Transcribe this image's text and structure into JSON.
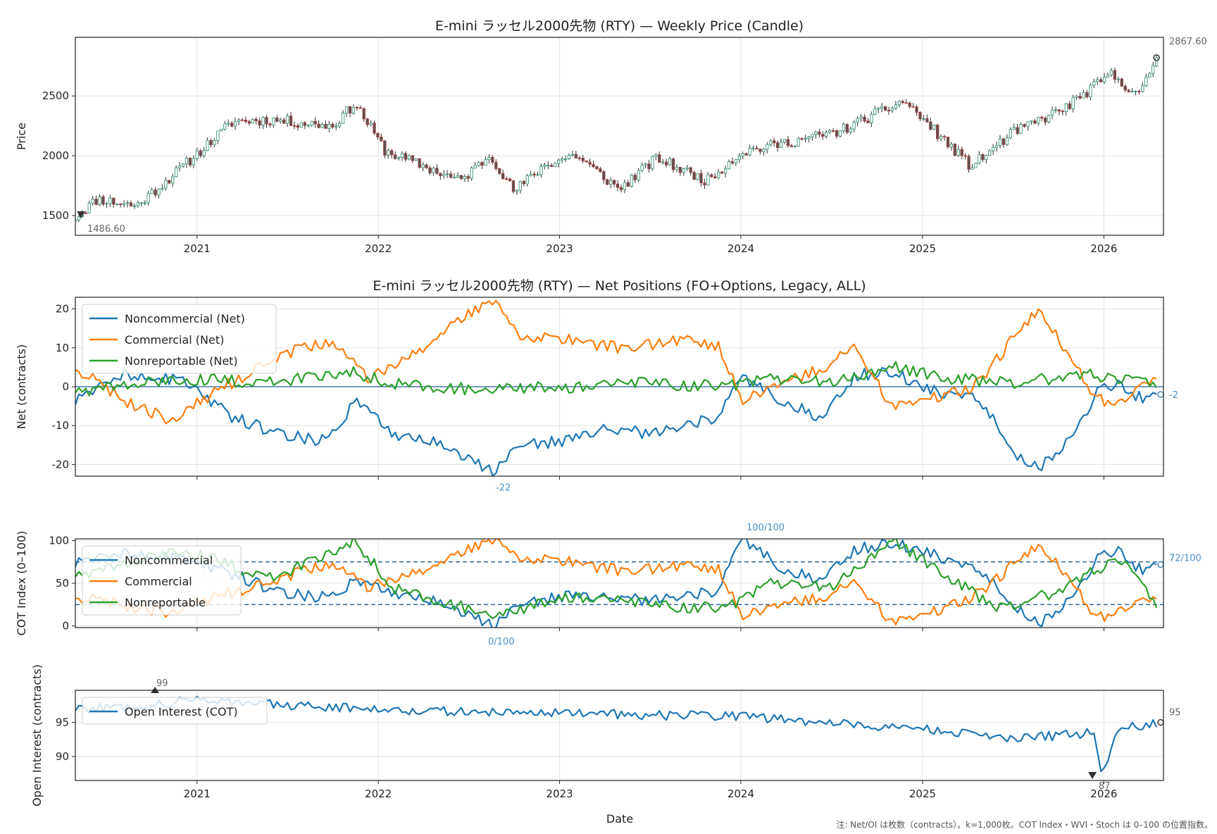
{
  "note": "注: Net/OI は枚数（contracts）。k=1,000枚。COT Index・WVI・Stoch は 0–100 の位置指数。",
  "xaxis": {
    "label": "Date",
    "range": [
      "2020-05-01",
      "2026-05-01"
    ],
    "ticks": [
      "2021",
      "2022",
      "2023",
      "2024",
      "2025",
      "2026"
    ]
  },
  "chart_data": [
    {
      "id": "price",
      "type": "candlestick",
      "title": "E-mini ラッセル2000先物 (RTY) — Weekly Price (Candle)",
      "ylabel": "Price",
      "ylim": [
        1335,
        2990
      ],
      "yticks": [
        1500,
        2000,
        2500
      ],
      "grid": true,
      "anchors": [
        [
          "2020-05-01",
          1487
        ],
        [
          "2020-06-15",
          1640
        ],
        [
          "2020-09-01",
          1580
        ],
        [
          "2020-12-01",
          1900
        ],
        [
          "2021-03-15",
          2290
        ],
        [
          "2021-06-01",
          2300
        ],
        [
          "2021-10-01",
          2250
        ],
        [
          "2021-11-15",
          2440
        ],
        [
          "2022-01-15",
          2040
        ],
        [
          "2022-06-15",
          1790
        ],
        [
          "2022-08-15",
          2010
        ],
        [
          "2022-10-01",
          1700
        ],
        [
          "2022-12-01",
          1920
        ],
        [
          "2023-02-01",
          2010
        ],
        [
          "2023-05-01",
          1720
        ],
        [
          "2023-07-15",
          1980
        ],
        [
          "2023-10-25",
          1790
        ],
        [
          "2024-01-01",
          2030
        ],
        [
          "2024-07-15",
          2200
        ],
        [
          "2024-11-25",
          2460
        ],
        [
          "2025-01-15",
          2250
        ],
        [
          "2025-04-08",
          1910
        ],
        [
          "2025-07-01",
          2190
        ],
        [
          "2025-10-15",
          2400
        ],
        [
          "2026-01-15",
          2680
        ],
        [
          "2026-03-15",
          2500
        ],
        [
          "2026-04-20",
          2868
        ]
      ],
      "annotations": {
        "max_label": "2867.60",
        "min_label": "1486.60"
      }
    },
    {
      "id": "net",
      "type": "line",
      "title": "E-mini ラッセル2000先物 (RTY) — Net Positions (FO+Options, Legacy, ALL)",
      "ylabel": "Net (contracts)",
      "ylim": [
        -23,
        23
      ],
      "yticks": [
        -20,
        -10,
        0,
        10,
        20
      ],
      "zero_line": 0,
      "legend": "upper-left",
      "series": [
        {
          "name": "Noncommercial (Net)",
          "color": "#1f77b4",
          "anchors": [
            [
              "2020-05-01",
              -4
            ],
            [
              "2020-08-01",
              3
            ],
            [
              "2020-12-01",
              2
            ],
            [
              "2021-03-15",
              -8
            ],
            [
              "2021-06-15",
              -12
            ],
            [
              "2021-09-15",
              -14
            ],
            [
              "2021-11-20",
              -3
            ],
            [
              "2022-02-01",
              -12
            ],
            [
              "2022-05-01",
              -14
            ],
            [
              "2022-08-20",
              -22
            ],
            [
              "2022-10-15",
              -15
            ],
            [
              "2023-01-15",
              -14
            ],
            [
              "2023-04-01",
              -11
            ],
            [
              "2023-07-15",
              -12
            ],
            [
              "2023-11-15",
              -8
            ],
            [
              "2024-01-03",
              2
            ],
            [
              "2024-04-01",
              -4
            ],
            [
              "2024-06-15",
              -8
            ],
            [
              "2024-08-20",
              3
            ],
            [
              "2024-11-01",
              4
            ],
            [
              "2025-01-15",
              -1
            ],
            [
              "2025-04-15",
              -2
            ],
            [
              "2025-07-15",
              -18
            ],
            [
              "2025-08-20",
              -21
            ],
            [
              "2025-10-15",
              -15
            ],
            [
              "2025-12-20",
              -1
            ],
            [
              "2026-02-01",
              1
            ],
            [
              "2026-03-15",
              -3
            ],
            [
              "2026-04-20",
              -2
            ]
          ]
        },
        {
          "name": "Commercial (Net)",
          "color": "#ff7f0e",
          "anchors": [
            [
              "2020-05-01",
              5
            ],
            [
              "2020-08-01",
              -3
            ],
            [
              "2020-11-15",
              -9
            ],
            [
              "2021-01-15",
              -3
            ],
            [
              "2021-06-15",
              8
            ],
            [
              "2021-10-01",
              12
            ],
            [
              "2021-12-15",
              2
            ],
            [
              "2022-03-15",
              8
            ],
            [
              "2022-06-01",
              17
            ],
            [
              "2022-08-20",
              22
            ],
            [
              "2022-10-15",
              13
            ],
            [
              "2023-01-15",
              12
            ],
            [
              "2023-05-01",
              10
            ],
            [
              "2023-09-01",
              12
            ],
            [
              "2023-11-20",
              10
            ],
            [
              "2024-01-03",
              -4
            ],
            [
              "2024-04-01",
              1
            ],
            [
              "2024-07-15",
              7
            ],
            [
              "2024-08-15",
              10
            ],
            [
              "2024-11-01",
              -5
            ],
            [
              "2025-01-15",
              -3
            ],
            [
              "2025-04-15",
              0
            ],
            [
              "2025-07-01",
              12
            ],
            [
              "2025-08-25",
              20
            ],
            [
              "2025-10-15",
              9
            ],
            [
              "2025-12-20",
              -3
            ],
            [
              "2026-02-01",
              -5
            ],
            [
              "2026-04-20",
              3
            ]
          ]
        },
        {
          "name": "Nonreportable (Net)",
          "color": "#2ca02c",
          "anchors": [
            [
              "2020-05-01",
              -1
            ],
            [
              "2020-08-01",
              0
            ],
            [
              "2020-12-01",
              2
            ],
            [
              "2021-06-01",
              1
            ],
            [
              "2021-11-01",
              4
            ],
            [
              "2022-02-01",
              1
            ],
            [
              "2022-08-01",
              -1
            ],
            [
              "2023-02-01",
              0
            ],
            [
              "2023-07-01",
              1
            ],
            [
              "2023-12-01",
              0
            ],
            [
              "2024-03-01",
              2
            ],
            [
              "2024-07-01",
              1
            ],
            [
              "2024-11-01",
              5
            ],
            [
              "2025-03-01",
              2
            ],
            [
              "2025-07-01",
              1
            ],
            [
              "2025-12-01",
              3
            ],
            [
              "2026-04-20",
              1
            ]
          ]
        }
      ],
      "annotations": {
        "min_label": "-22",
        "last_label": "-2"
      }
    },
    {
      "id": "cot",
      "type": "line",
      "title": "",
      "ylabel": "COT Index (0–100)",
      "ylim": [
        -2,
        102
      ],
      "yticks": [
        0,
        50,
        100
      ],
      "hlines": [
        75,
        25
      ],
      "legend": "upper-left",
      "series": [
        {
          "name": "Noncommercial",
          "color": "#1f77b4",
          "anchors": [
            [
              "2020-05-01",
              72
            ],
            [
              "2020-08-01",
              85
            ],
            [
              "2020-12-01",
              80
            ],
            [
              "2021-03-15",
              60
            ],
            [
              "2021-06-15",
              40
            ],
            [
              "2021-09-15",
              33
            ],
            [
              "2021-11-20",
              55
            ],
            [
              "2022-02-01",
              40
            ],
            [
              "2022-05-01",
              30
            ],
            [
              "2022-08-20",
              0
            ],
            [
              "2022-10-15",
              25
            ],
            [
              "2023-01-15",
              35
            ],
            [
              "2023-07-15",
              30
            ],
            [
              "2023-11-15",
              40
            ],
            [
              "2024-01-03",
              100
            ],
            [
              "2024-04-01",
              65
            ],
            [
              "2024-06-15",
              55
            ],
            [
              "2024-08-20",
              90
            ],
            [
              "2024-11-01",
              98
            ],
            [
              "2025-01-15",
              85
            ],
            [
              "2025-04-15",
              70
            ],
            [
              "2025-07-15",
              20
            ],
            [
              "2025-08-20",
              2
            ],
            [
              "2025-10-15",
              25
            ],
            [
              "2025-12-20",
              80
            ],
            [
              "2026-02-01",
              90
            ],
            [
              "2026-03-15",
              65
            ],
            [
              "2026-04-20",
              72
            ]
          ]
        },
        {
          "name": "Commercial",
          "color": "#ff7f0e",
          "anchors": [
            [
              "2020-05-01",
              35
            ],
            [
              "2020-08-01",
              25
            ],
            [
              "2020-11-15",
              15
            ],
            [
              "2021-01-15",
              30
            ],
            [
              "2021-06-15",
              55
            ],
            [
              "2021-10-01",
              75
            ],
            [
              "2021-12-15",
              45
            ],
            [
              "2022-03-15",
              60
            ],
            [
              "2022-06-01",
              85
            ],
            [
              "2022-08-20",
              100
            ],
            [
              "2022-10-15",
              80
            ],
            [
              "2023-01-15",
              75
            ],
            [
              "2023-05-01",
              65
            ],
            [
              "2023-09-01",
              70
            ],
            [
              "2023-11-20",
              65
            ],
            [
              "2024-01-03",
              10
            ],
            [
              "2024-04-01",
              25
            ],
            [
              "2024-07-15",
              40
            ],
            [
              "2024-08-15",
              50
            ],
            [
              "2024-11-01",
              5
            ],
            [
              "2025-01-15",
              15
            ],
            [
              "2025-04-15",
              35
            ],
            [
              "2025-07-01",
              70
            ],
            [
              "2025-08-25",
              95
            ],
            [
              "2025-10-15",
              60
            ],
            [
              "2025-12-20",
              10
            ],
            [
              "2026-02-01",
              15
            ],
            [
              "2026-04-20",
              35
            ]
          ]
        },
        {
          "name": "Nonreportable",
          "color": "#2ca02c",
          "anchors": [
            [
              "2020-05-01",
              60
            ],
            [
              "2020-08-01",
              70
            ],
            [
              "2020-12-01",
              90
            ],
            [
              "2021-06-01",
              55
            ],
            [
              "2021-11-15",
              100
            ],
            [
              "2022-02-01",
              45
            ],
            [
              "2022-06-01",
              25
            ],
            [
              "2022-09-01",
              10
            ],
            [
              "2023-01-15",
              35
            ],
            [
              "2023-07-01",
              25
            ],
            [
              "2023-12-01",
              20
            ],
            [
              "2024-03-01",
              50
            ],
            [
              "2024-07-01",
              45
            ],
            [
              "2024-11-01",
              100
            ],
            [
              "2025-03-01",
              55
            ],
            [
              "2025-06-01",
              20
            ],
            [
              "2025-10-01",
              40
            ],
            [
              "2025-12-01",
              60
            ],
            [
              "2026-02-01",
              80
            ],
            [
              "2026-04-20",
              25
            ]
          ]
        }
      ],
      "annotations": {
        "max_label": "100/100",
        "min_label": "0/100",
        "last_label": "72/100"
      }
    },
    {
      "id": "oi",
      "type": "line",
      "title": "",
      "ylabel": "Open Interest (contracts)",
      "ylim": [
        86.5,
        99.7
      ],
      "yticks": [
        90,
        95
      ],
      "legend": "upper-left",
      "series": [
        {
          "name": "Open Interest (COT)",
          "color": "#1f77b4",
          "anchors": [
            [
              "2020-05-01",
              97
            ],
            [
              "2020-10-01",
              97.5
            ],
            [
              "2021-01-15",
              98.5
            ],
            [
              "2021-06-15",
              97.5
            ],
            [
              "2022-01-15",
              97
            ],
            [
              "2022-06-15",
              96.5
            ],
            [
              "2023-01-15",
              96.5
            ],
            [
              "2023-06-15",
              96
            ],
            [
              "2024-01-03",
              96
            ],
            [
              "2024-06-15",
              95
            ],
            [
              "2025-01-15",
              94
            ],
            [
              "2025-06-15",
              92.5
            ],
            [
              "2025-12-15",
              93.5
            ],
            [
              "2025-12-25",
              87
            ],
            [
              "2026-02-01",
              94
            ],
            [
              "2026-04-20",
              95
            ]
          ]
        }
      ],
      "annotations": {
        "max_label": "99",
        "min_label": "87",
        "last_label": "95"
      }
    }
  ]
}
